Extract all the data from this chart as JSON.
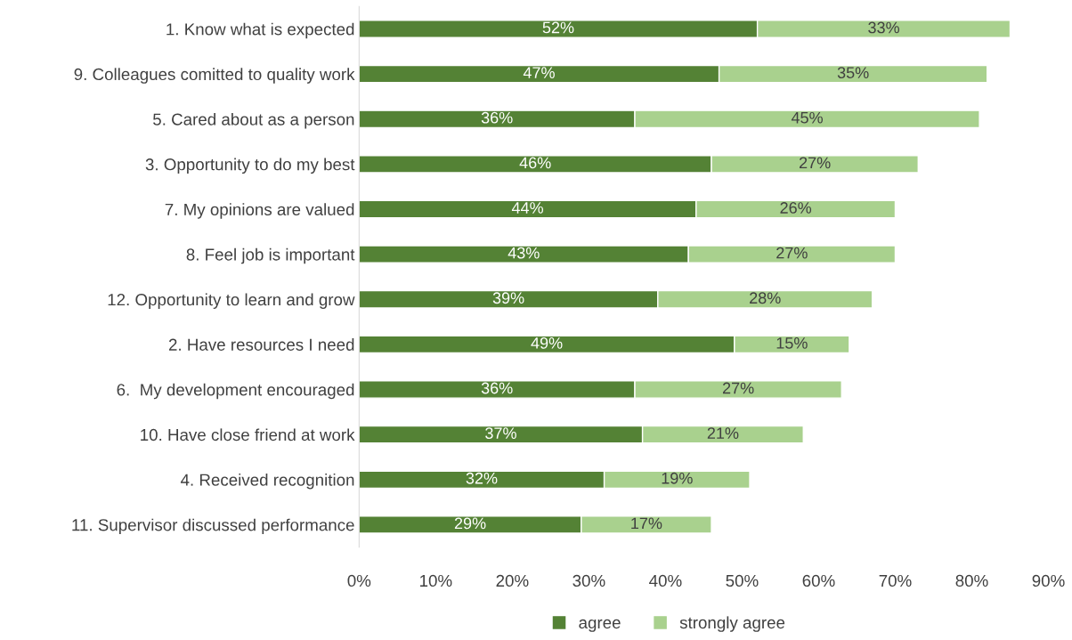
{
  "chart_data": {
    "type": "bar",
    "orientation": "horizontal",
    "stacked": true,
    "categories": [
      "1. Know what is expected",
      "9. Colleagues comitted to quality work",
      "5. Cared about as a person",
      "3. Opportunity to do my best",
      "7. My opinions are valued",
      "8. Feel job is important",
      "12. Opportunity to learn and grow",
      "2. Have resources I need",
      "6.  My development encouraged",
      "10. Have close friend at work",
      "4. Received recognition",
      "11. Supervisor discussed performance"
    ],
    "series": [
      {
        "name": "agree",
        "color": "#548235",
        "values": [
          52,
          47,
          36,
          46,
          44,
          43,
          39,
          49,
          36,
          37,
          32,
          29
        ],
        "value_labels": [
          "52%",
          "47%",
          "36%",
          "46%",
          "44%",
          "43%",
          "39%",
          "49%",
          "36%",
          "37%",
          "32%",
          "29%"
        ]
      },
      {
        "name": "strongly agree",
        "color": "#a9d18e",
        "values": [
          33,
          35,
          45,
          27,
          26,
          27,
          28,
          15,
          27,
          21,
          19,
          17
        ],
        "value_labels": [
          "33%",
          "35%",
          "45%",
          "27%",
          "26%",
          "27%",
          "28%",
          "15%",
          "27%",
          "21%",
          "19%",
          "17%"
        ]
      }
    ],
    "xlim": [
      0,
      90
    ],
    "xticks": [
      {
        "value": 0,
        "label": "0%"
      },
      {
        "value": 10,
        "label": "10%"
      },
      {
        "value": 20,
        "label": "20%"
      },
      {
        "value": 30,
        "label": "30%"
      },
      {
        "value": 40,
        "label": "40%"
      },
      {
        "value": 50,
        "label": "50%"
      },
      {
        "value": 60,
        "label": "60%"
      },
      {
        "value": 70,
        "label": "70%"
      },
      {
        "value": 80,
        "label": "80%"
      },
      {
        "value": 90,
        "label": "90%"
      }
    ],
    "grid": false,
    "legend": "bottom"
  }
}
